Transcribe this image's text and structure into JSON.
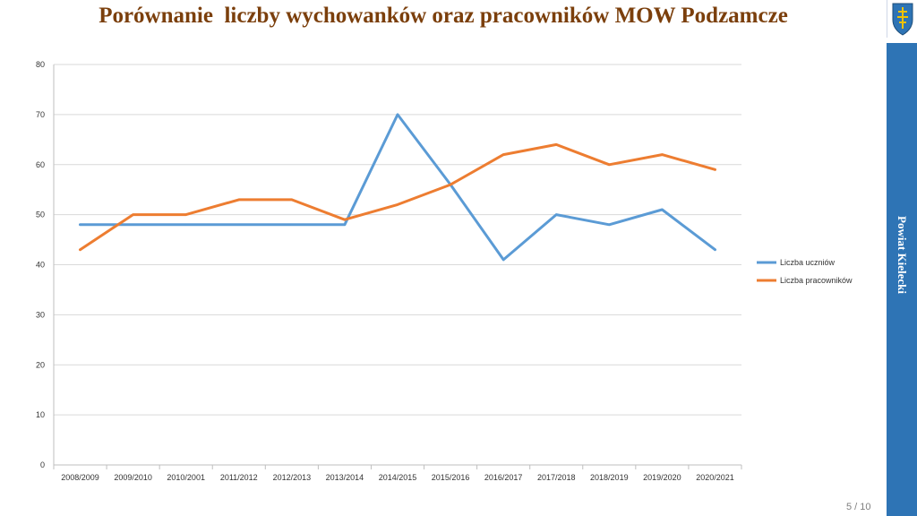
{
  "slide": {
    "title": "Porównanie  liczby wychowanków oraz pracowników MOW Podzamcze",
    "side_label": "Powiat Kielecki",
    "page_number": "5 / 10"
  },
  "chart_data": {
    "type": "line",
    "categories": [
      "2008/2009",
      "2009/2010",
      "2010/2001",
      "2011/2012",
      "2012/2013",
      "2013/2014",
      "2014/2015",
      "2015/2016",
      "2016/2017",
      "2017/2018",
      "2018/2019",
      "2019/2020",
      "2020/2021"
    ],
    "series": [
      {
        "name": "Liczba uczniów",
        "color": "#5b9bd5",
        "values": [
          48,
          48,
          48,
          48,
          48,
          48,
          70,
          56,
          41,
          50,
          48,
          51,
          43
        ]
      },
      {
        "name": "Liczba pracowników",
        "color": "#ed7d31",
        "values": [
          43,
          50,
          50,
          53,
          53,
          49,
          52,
          56,
          62,
          64,
          60,
          62,
          59
        ]
      }
    ],
    "ylim": [
      0,
      80
    ],
    "yticks": [
      0,
      10,
      20,
      30,
      40,
      50,
      60,
      70,
      80
    ],
    "grid": true,
    "legend_position": "right"
  }
}
